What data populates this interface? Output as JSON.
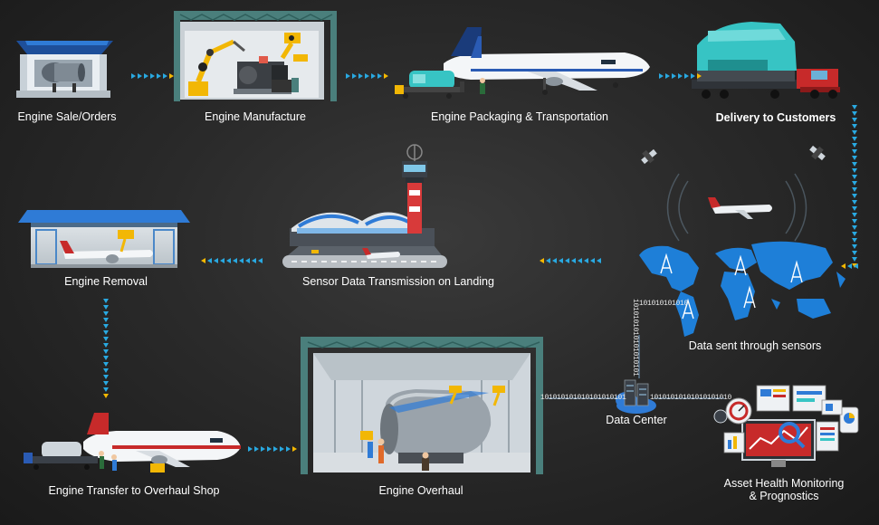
{
  "stages": {
    "engine_sale": "Engine Sale/Orders",
    "engine_manufacture": "Engine Manufacture",
    "engine_packaging": "Engine Packaging & Transportation",
    "delivery": "Delivery to Customers",
    "sensor_data": "Sensor Data  Transmission on Landing",
    "engine_removal": "Engine Removal",
    "data_sent": "Data sent through sensors",
    "data_center": "Data Center",
    "asset_health_line1": "Asset Health Monitoring",
    "asset_health_line2": "& Prognostics",
    "engine_transfer": "Engine Transfer to Overhaul Shop",
    "engine_overhaul": "Engine Overhaul"
  },
  "binary": {
    "vertical": "1010101010101010101",
    "horizontal_left": "101010101010101010101",
    "horizontal_right": "10101010101010101010",
    "map_stream": "101010101010"
  },
  "colors": {
    "arrow_blue": "#29a9e1",
    "arrow_yellow": "#f5b800",
    "map_blue": "#1e7fd8"
  }
}
